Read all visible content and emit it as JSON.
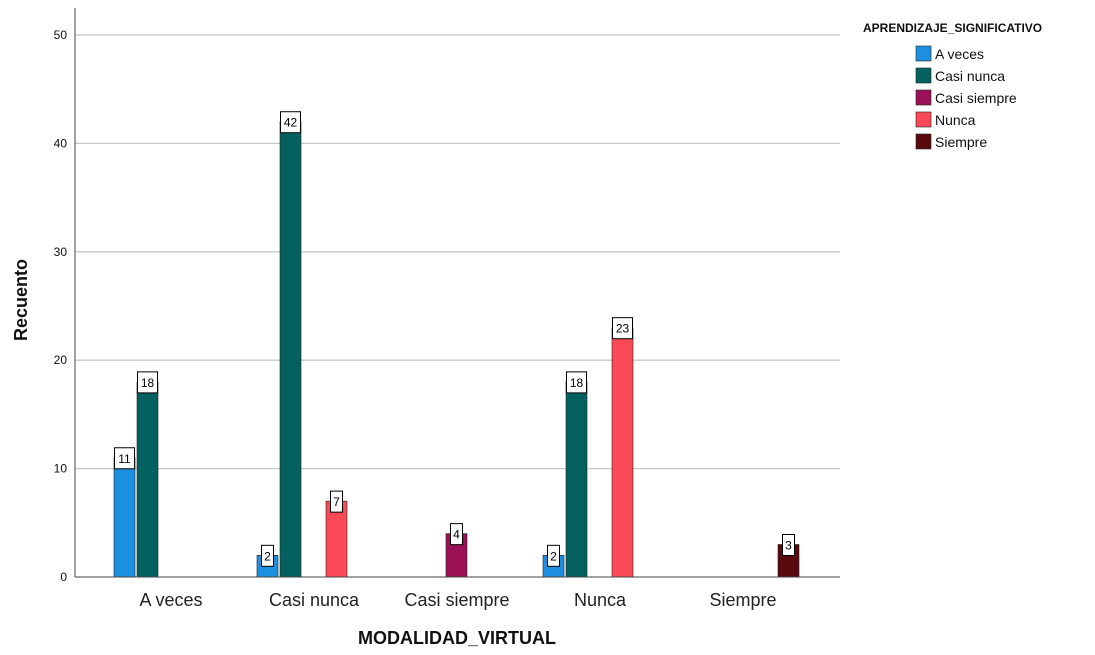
{
  "chart_data": {
    "type": "bar",
    "categories": [
      "A veces",
      "Casi nunca",
      "Casi siempre",
      "Nunca",
      "Siempre"
    ],
    "xlabel": "MODALIDAD_VIRTUAL",
    "ylabel": "Recuento",
    "ylim": [
      0,
      50
    ],
    "yticks": [
      0,
      10,
      20,
      30,
      40,
      50
    ],
    "grid": true,
    "legend_title": "APRENDIZAJE_SIGNIFICATIVO",
    "legend_position": "top-right",
    "series": [
      {
        "name": "A veces",
        "color": "#1c8fe0",
        "values": [
          11,
          2,
          null,
          2,
          null
        ]
      },
      {
        "name": "Casi nunca",
        "color": "#04615f",
        "values": [
          18,
          42,
          null,
          18,
          null
        ]
      },
      {
        "name": "Casi siempre",
        "color": "#9b1156",
        "values": [
          null,
          null,
          4,
          null,
          null
        ]
      },
      {
        "name": "Nunca",
        "color": "#fb4a57",
        "values": [
          null,
          7,
          null,
          23,
          null
        ]
      },
      {
        "name": "Siempre",
        "color": "#5a0a0e",
        "values": [
          null,
          null,
          null,
          null,
          3
        ]
      }
    ]
  }
}
